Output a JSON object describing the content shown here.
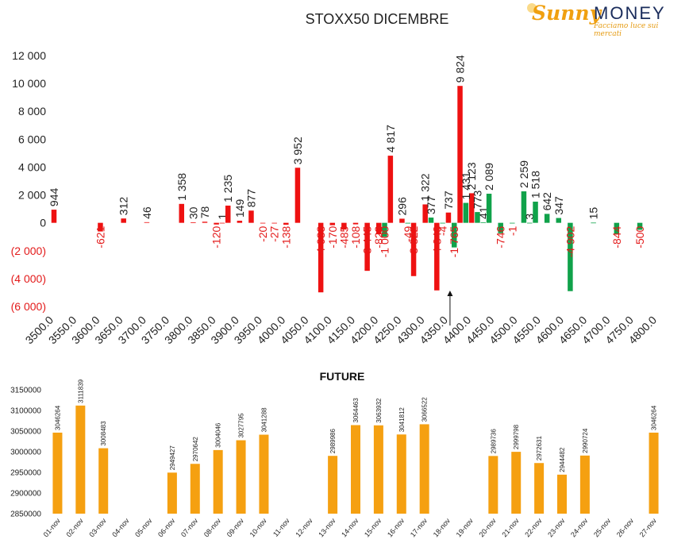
{
  "header": {
    "title": "STOXX50 DICEMBRE",
    "logo_main": "Sunny",
    "logo_money": "MONEY",
    "logo_tagline": "Facciamo luce sui mercati"
  },
  "colors": {
    "call": "#ee1111",
    "put": "#10a24a",
    "future": "#f5a011",
    "negative_label": "#e31a1a"
  },
  "chart_data": [
    {
      "type": "bar",
      "title": "STOXX50 DICEMBRE",
      "xlabel": "",
      "ylabel": "",
      "ylim": [
        -6000,
        12000
      ],
      "y_ticks": [
        12000,
        10000,
        8000,
        6000,
        4000,
        2000,
        0,
        -2000,
        -4000,
        -6000
      ],
      "y_tick_labels": [
        "12 000",
        "10 000",
        "8 000",
        "6 000",
        "4 000",
        "2 000",
        "0",
        "(2 000)",
        "(4 000)",
        "(6 000)"
      ],
      "x_ticks": [
        "3500.0",
        "3550.0",
        "3600.0",
        "3650.0",
        "3700.0",
        "3750.0",
        "3800.0",
        "3850.0",
        "3900.0",
        "3950.0",
        "4000.0",
        "4050.0",
        "4100.0",
        "4150.0",
        "4200.0",
        "4250.0",
        "4300.0",
        "4350.0",
        "4400.0",
        "4450.0",
        "4500.0",
        "4550.0",
        "4600.0",
        "4650.0",
        "4700.0",
        "4750.0",
        "4800.0"
      ],
      "grid": false,
      "marker_strike": 4350,
      "series": [
        {
          "color_key": "call",
          "points": [
            {
              "x": 3500,
              "y": 944,
              "label": "944"
            },
            {
              "x": 3600,
              "y": -621,
              "label": "-621"
            },
            {
              "x": 3650,
              "y": 312,
              "label": "312"
            },
            {
              "x": 3700,
              "y": 46,
              "label": "46"
            },
            {
              "x": 3775,
              "y": 1358,
              "label": "1 358"
            },
            {
              "x": 3800,
              "y": 30,
              "label": "30"
            },
            {
              "x": 3825,
              "y": 78,
              "label": "78"
            },
            {
              "x": 3850,
              "y": -120,
              "label": "-120"
            },
            {
              "x": 3862.5,
              "y": 1,
              "label": "1"
            },
            {
              "x": 3875,
              "y": 1235,
              "label": "1 235"
            },
            {
              "x": 3900,
              "y": 149,
              "label": "149"
            },
            {
              "x": 3925,
              "y": 877,
              "label": "877"
            },
            {
              "x": 3950,
              "y": -20,
              "label": "-20"
            },
            {
              "x": 3975,
              "y": -27,
              "label": "-27"
            },
            {
              "x": 4000,
              "y": -138,
              "label": "-138"
            },
            {
              "x": 4025,
              "y": 3952,
              "label": "3 952"
            },
            {
              "x": 4075,
              "y": -4988,
              "label": "-4 988"
            },
            {
              "x": 4100,
              "y": -170,
              "label": "-170"
            },
            {
              "x": 4125,
              "y": -485,
              "label": "-485"
            },
            {
              "x": 4150,
              "y": -108,
              "label": "-108"
            },
            {
              "x": 4175,
              "y": -3445,
              "label": "-3 445"
            },
            {
              "x": 4200,
              "y": -823,
              "label": "-823"
            },
            {
              "x": 4225,
              "y": 4817,
              "label": "4 817"
            },
            {
              "x": 4250,
              "y": 296,
              "label": "296"
            },
            {
              "x": 4275,
              "y": -3822,
              "label": "-3 822"
            },
            {
              "x": 4300,
              "y": 1322,
              "label": "1 322"
            },
            {
              "x": 4325,
              "y": -4848,
              "label": "-4 848"
            },
            {
              "x": 4350,
              "y": 737,
              "label": "737"
            },
            {
              "x": 4375,
              "y": 9824,
              "label": "9 824"
            },
            {
              "x": 4400,
              "y": 2123,
              "label": "2 123"
            }
          ]
        },
        {
          "color_key": "put",
          "points": [
            {
              "x": 4212.5,
              "y": -1000,
              "label": "-1 000"
            },
            {
              "x": 4262.5,
              "y": -49,
              "label": "-49"
            },
            {
              "x": 4312.5,
              "y": 377,
              "label": "377"
            },
            {
              "x": 4337.5,
              "y": -4,
              "label": "-4"
            },
            {
              "x": 4362.5,
              "y": -1765,
              "label": "-1 765"
            },
            {
              "x": 4387.5,
              "y": 1431,
              "label": "1 431"
            },
            {
              "x": 4412.5,
              "y": 773,
              "label": "773"
            },
            {
              "x": 4425,
              "y": 41,
              "label": "41"
            },
            {
              "x": 4437.5,
              "y": 2089,
              "label": "2 089"
            },
            {
              "x": 4462.5,
              "y": -746,
              "label": "-746"
            },
            {
              "x": 4487.5,
              "y": -1,
              "label": "-1"
            },
            {
              "x": 4512.5,
              "y": 2259,
              "label": "2 259"
            },
            {
              "x": 4525,
              "y": 3,
              "label": "3"
            },
            {
              "x": 4537.5,
              "y": 1518,
              "label": "1 518"
            },
            {
              "x": 4562.5,
              "y": 642,
              "label": "642"
            },
            {
              "x": 4587.5,
              "y": 347,
              "label": "347"
            },
            {
              "x": 4612.5,
              "y": -4902,
              "label": "-4 902"
            },
            {
              "x": 4662.5,
              "y": 15,
              "label": "15"
            },
            {
              "x": 4712.5,
              "y": -844,
              "label": "-844"
            },
            {
              "x": 4762.5,
              "y": -500,
              "label": "-500"
            }
          ]
        }
      ]
    },
    {
      "type": "bar",
      "title": "FUTURE",
      "xlabel": "",
      "ylabel": "",
      "ylim": [
        2850000,
        3150000
      ],
      "y_ticks": [
        3150000,
        3100000,
        3050000,
        3000000,
        2950000,
        2900000,
        2850000
      ],
      "y_tick_labels": [
        "3150000",
        "3100000",
        "3050000",
        "3000000",
        "2950000",
        "2900000",
        "2850000"
      ],
      "grid": false,
      "categories": [
        "01-nov",
        "02-nov",
        "03-nov",
        "04-nov",
        "05-nov",
        "06-nov",
        "07-nov",
        "08-nov",
        "09-nov",
        "10-nov",
        "11-nov",
        "12-nov",
        "13-nov",
        "14-nov",
        "15-nov",
        "16-nov",
        "17-nov",
        "18-nov",
        "19-nov",
        "20-nov",
        "21-nov",
        "22-nov",
        "23-nov",
        "24-nov",
        "25-nov",
        "26-nov",
        "27-nov"
      ],
      "values": [
        3046264,
        3111839,
        3008483,
        null,
        null,
        2949427,
        2970642,
        3004046,
        3027795,
        3041288,
        null,
        null,
        2989986,
        3064463,
        3063932,
        3041812,
        3066522,
        null,
        null,
        2989736,
        2999798,
        2972631,
        2944482,
        2990724,
        null,
        null,
        3046264
      ],
      "labels": [
        "3046264",
        "3111839",
        "3008483",
        "",
        "",
        "2949427",
        "2970642",
        "3004046",
        "3027795",
        "3041288",
        "",
        "",
        "2989986",
        "3064463",
        "3063932",
        "3041812",
        "3066522",
        "",
        "",
        "2989736",
        "2999798",
        "2972631",
        "2944482",
        "2990724",
        "",
        "",
        "3046264"
      ]
    }
  ]
}
